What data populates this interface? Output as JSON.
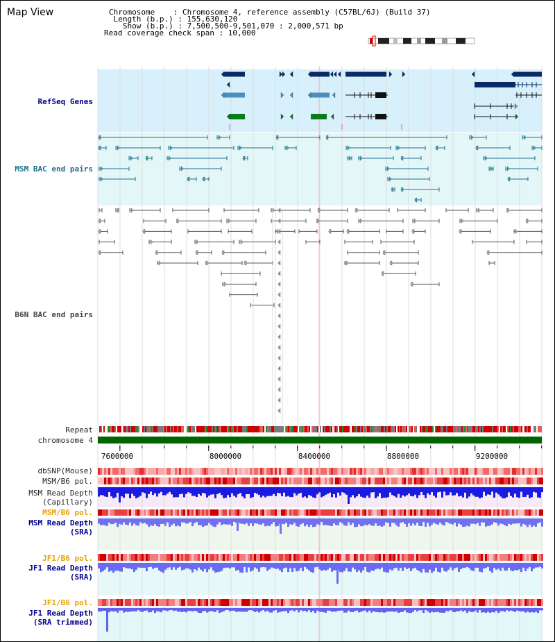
{
  "header": {
    "map_title": "Map View",
    "chromosome_line": "Chromosome    : Chromosome 4, reference assembly (C57BL/6J) (Build 37)",
    "length_line": " Length (b.p.) : 155,630,120",
    "show_line": "   Show (b.p.) : 7,500,500-9,501,070 : 2,000,571 bp",
    "coverage_line": "Read coverage check span : 10,000"
  },
  "tracks": {
    "refseq": {
      "label": "RefSeq Genes",
      "color": "#00008b"
    },
    "msm_bac": {
      "label": "MSM BAC end pairs",
      "color": "#1f6f8b"
    },
    "b6n_bac": {
      "label": "B6N BAC end pairs",
      "color": "#444444"
    },
    "repeat": {
      "label": "Repeat"
    },
    "chromosome": {
      "label": "chromosome 4",
      "color": "#006400"
    },
    "dbsnp": {
      "label": "dbSNP(Mouse)"
    },
    "msm_pol": {
      "label": "MSM/B6 pol."
    },
    "msm_depth_cap": {
      "label1": "MSM Read Depth",
      "label2": "(Capillary)"
    },
    "msm_pol_2": {
      "label": "MSM/B6 pol.",
      "color": "#e8a000"
    },
    "msm_depth_sra": {
      "label1": "MSM Read Depth",
      "label2": "(SRA)"
    },
    "jf1_pol": {
      "label": "JF1/B6 pol.",
      "color": "#e8a000"
    },
    "jf1_depth_sra": {
      "label1": "JF1 Read Depth",
      "label2": "(SRA)"
    },
    "jf1_pol_2": {
      "label": "JF1/B6 pol.",
      "color": "#e8a000"
    },
    "jf1_depth_trim": {
      "label1": "JF1 Read Depth",
      "label2": "(SRA trimmed)"
    }
  },
  "axis": {
    "range_bp": [
      7500500,
      9501070
    ],
    "ticks": [
      {
        "value": 7600000,
        "label": "7600000"
      },
      {
        "value": 8000000,
        "label": "8000000"
      },
      {
        "value": 8400000,
        "label": "8400000"
      },
      {
        "value": 8800000,
        "label": "8800000"
      },
      {
        "value": 9200000,
        "label": "9200000"
      }
    ]
  }
}
